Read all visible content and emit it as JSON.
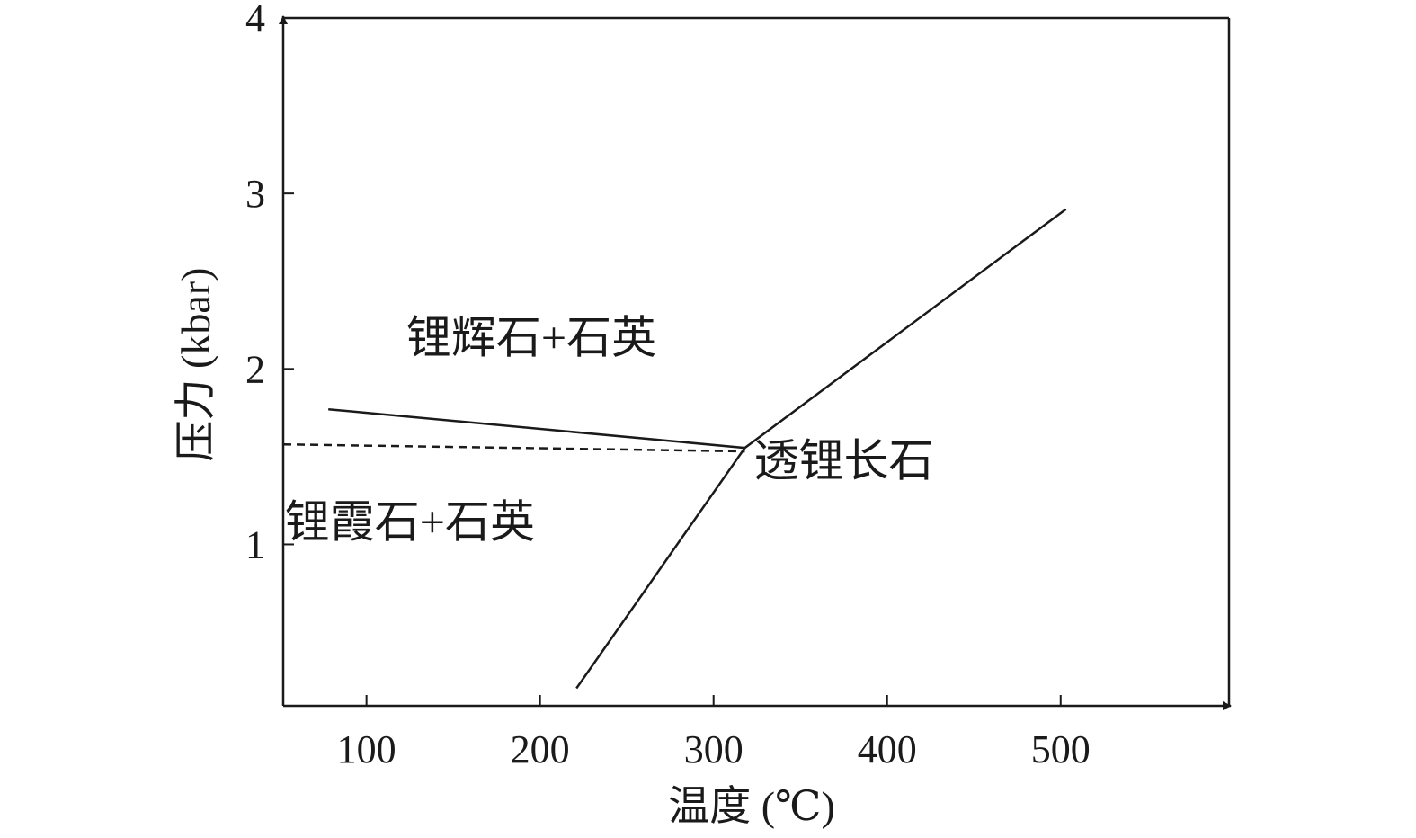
{
  "chart_data": {
    "type": "line",
    "xlabel": "温度 (℃)",
    "ylabel": "压力 (kbar)",
    "xlim": [
      52,
      597
    ],
    "ylim": [
      0.08,
      4.0
    ],
    "x_ticks": [
      100,
      200,
      300,
      400,
      500
    ],
    "y_ticks": [
      1,
      2,
      3,
      4
    ],
    "grid": false,
    "frame": "box with arrowheads on x and y axes",
    "series": [
      {
        "style": "solid",
        "points": [
          [
            78,
            1.77
          ],
          [
            318,
            1.55
          ]
        ]
      },
      {
        "style": "dashed",
        "points": [
          [
            52,
            1.57
          ],
          [
            318,
            1.53
          ]
        ]
      },
      {
        "style": "solid",
        "points": [
          [
            221,
            0.18
          ],
          [
            318,
            1.55
          ]
        ]
      },
      {
        "style": "solid",
        "points": [
          [
            318,
            1.55
          ],
          [
            503,
            2.91
          ]
        ]
      }
    ],
    "annotations": [
      {
        "text": "锂辉石+石英",
        "x": 195,
        "y": 2.09
      },
      {
        "text": "锂霞石+石英",
        "x": 125,
        "y": 1.04
      },
      {
        "text": "透锂长石",
        "x": 375,
        "y": 1.39
      }
    ]
  }
}
